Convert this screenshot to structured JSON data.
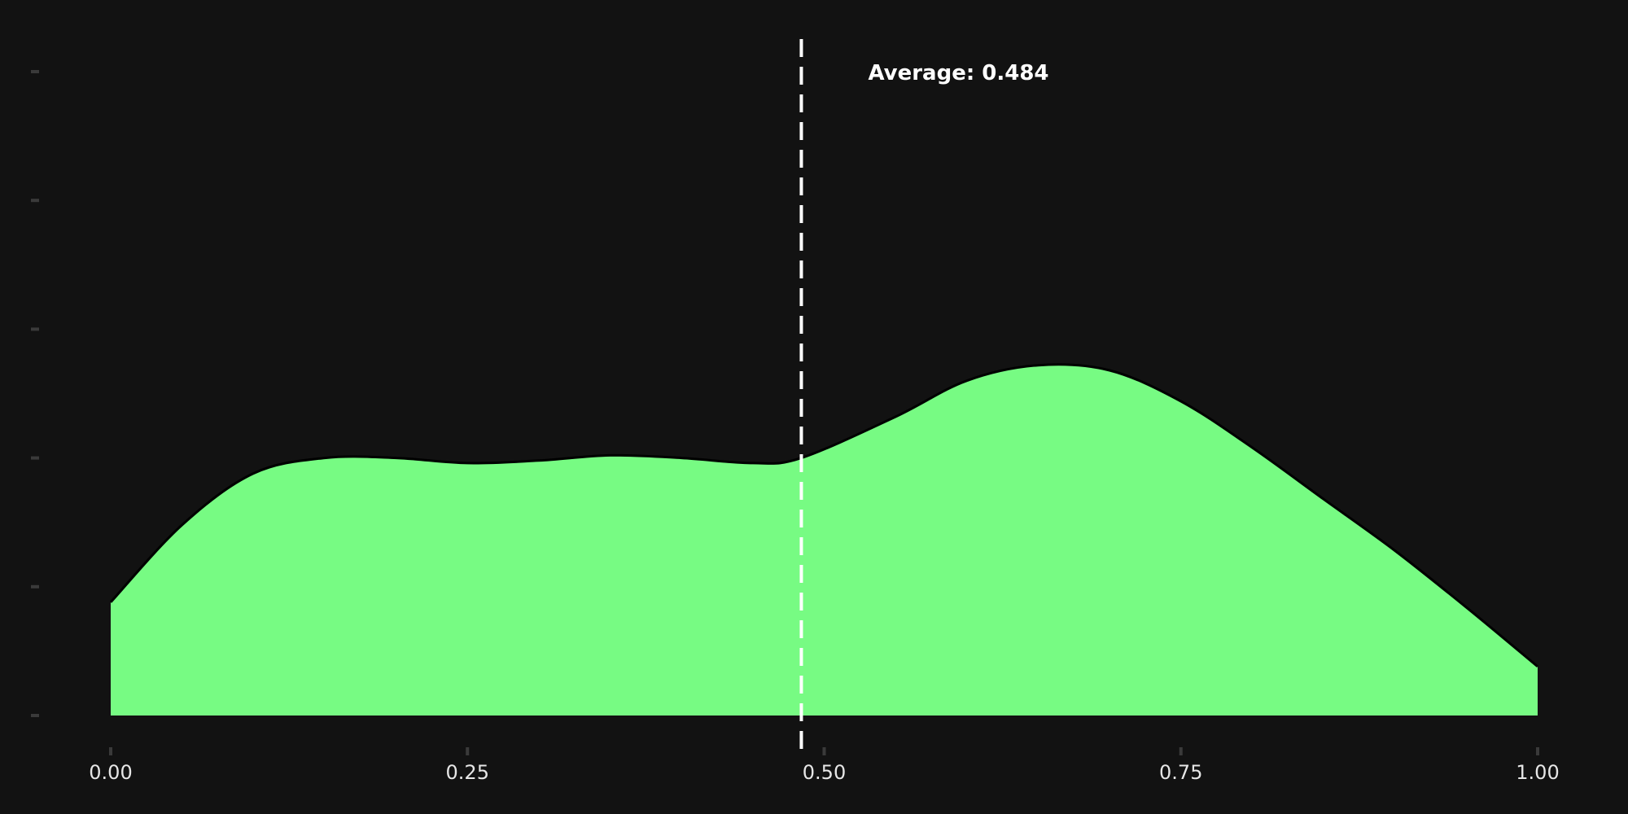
{
  "chart_data": {
    "type": "area",
    "title": "",
    "xlabel": "",
    "ylabel": "",
    "xlim": [
      0,
      1
    ],
    "ylim": [
      0,
      1.25
    ],
    "grid": false,
    "fill_color": "#77fb83",
    "line_color": "#000000",
    "background_color": "#121212",
    "mean_line_color": "#ffffff",
    "x_ticks": [
      {
        "value": 0.0,
        "label": "0.00"
      },
      {
        "value": 0.25,
        "label": "0.25"
      },
      {
        "value": 0.5,
        "label": "0.50"
      },
      {
        "value": 0.75,
        "label": "0.75"
      },
      {
        "value": 1.0,
        "label": "1.00"
      }
    ],
    "y_ticks": [
      0,
      0.25,
      0.5,
      0.75,
      1.0,
      1.25
    ],
    "density": {
      "x": [
        0.0,
        0.05,
        0.1,
        0.15,
        0.2,
        0.25,
        0.3,
        0.35,
        0.4,
        0.45,
        0.484,
        0.55,
        0.6,
        0.65,
        0.7,
        0.75,
        0.8,
        0.85,
        0.9,
        0.95,
        1.0
      ],
      "y": [
        0.22,
        0.37,
        0.47,
        0.5,
        0.5,
        0.49,
        0.495,
        0.505,
        0.5,
        0.49,
        0.5,
        0.58,
        0.65,
        0.68,
        0.67,
        0.61,
        0.52,
        0.42,
        0.32,
        0.21,
        0.095
      ]
    },
    "mean": {
      "value": 0.484,
      "label": "Average: 0.484"
    }
  }
}
